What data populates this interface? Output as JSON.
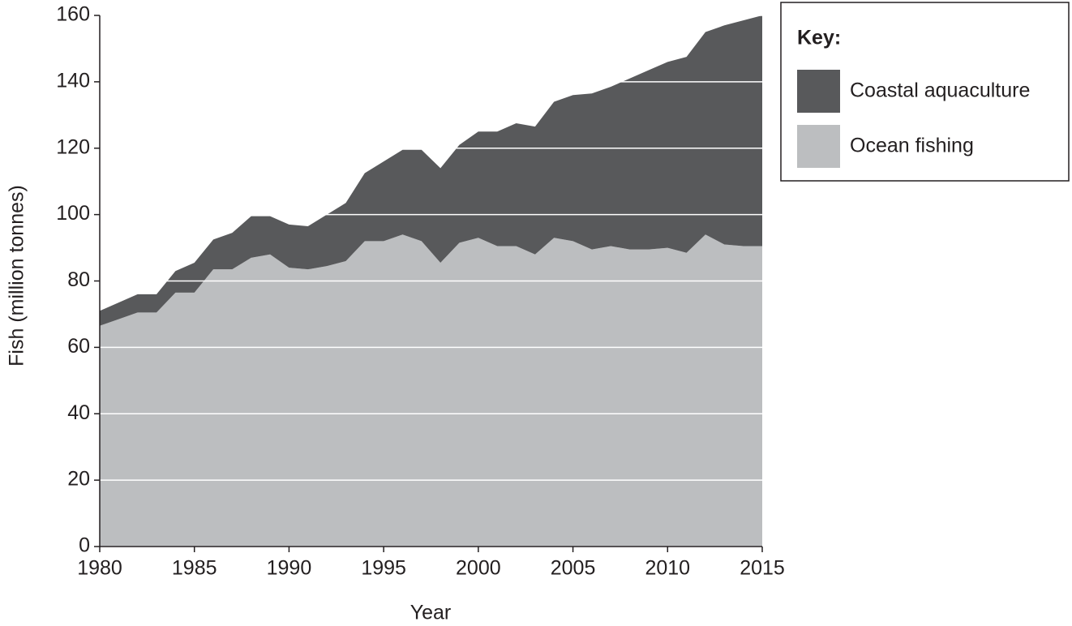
{
  "chart_data": {
    "type": "stacked_area",
    "x_label": "Year",
    "y_label": "Fish (million tonnes)",
    "legend_title": "Key:",
    "x": [
      1980,
      1981,
      1982,
      1983,
      1984,
      1985,
      1986,
      1987,
      1988,
      1989,
      1990,
      1991,
      1992,
      1993,
      1994,
      1995,
      1996,
      1997,
      1998,
      1999,
      2000,
      2001,
      2002,
      2003,
      2004,
      2005,
      2006,
      2007,
      2008,
      2009,
      2010,
      2011,
      2012,
      2013,
      2014,
      2015
    ],
    "series": [
      {
        "name": "Ocean fishing",
        "color": "#bcbec0",
        "values": [
          66.5,
          68.5,
          70.5,
          70.5,
          76.5,
          76.5,
          83.5,
          83.5,
          87,
          88,
          84,
          83.5,
          84.5,
          86,
          92,
          92,
          94,
          92,
          85.5,
          91.5,
          93,
          90.5,
          90.5,
          88,
          93,
          92,
          89.5,
          90.5,
          89.5,
          89.5,
          90,
          88.5,
          94,
          91,
          90.5,
          90.5
        ]
      },
      {
        "name": "Coastal aquaculture",
        "color": "#58595b",
        "values": [
          4.5,
          5,
          5.5,
          5.5,
          6.5,
          9,
          9,
          11,
          12.5,
          11.5,
          13,
          13,
          15.5,
          17.5,
          20.5,
          24,
          25.5,
          27.5,
          28.5,
          29.5,
          32,
          34.5,
          37,
          38.5,
          41,
          44,
          47,
          48,
          51.5,
          54,
          56,
          59,
          61,
          66,
          68,
          69.5
        ]
      }
    ],
    "xlim": [
      1980,
      2015
    ],
    "xticks": [
      1980,
      1985,
      1990,
      1995,
      2000,
      2005,
      2010,
      2015
    ],
    "ylim": [
      0,
      160
    ],
    "yticks": [
      0,
      20,
      40,
      60,
      80,
      100,
      120,
      140,
      160
    ],
    "grid": true,
    "legend": "right"
  }
}
